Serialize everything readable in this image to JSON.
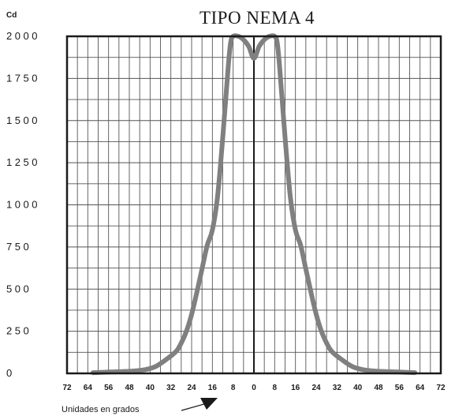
{
  "chart_data": {
    "type": "line",
    "title": "TIPO NEMA 4",
    "ylabel": "Cd",
    "xlabel": "Unidades en grados",
    "xlim": [
      -72,
      72
    ],
    "ylim": [
      0,
      2000
    ],
    "grid": true,
    "x_ticks": [
      -72,
      -64,
      -56,
      -48,
      -40,
      -32,
      -24,
      -16,
      -8,
      0,
      8,
      16,
      24,
      32,
      40,
      48,
      56,
      64,
      72
    ],
    "x_tick_labels": [
      "72",
      "64",
      "56",
      "48",
      "40",
      "32",
      "24",
      "16",
      "8",
      "0",
      "8",
      "16",
      "24",
      "32",
      "40",
      "48",
      "56",
      "64",
      "72"
    ],
    "y_ticks": [
      0,
      250,
      500,
      750,
      1000,
      1250,
      1500,
      1750,
      2000
    ],
    "y_tick_labels": [
      "0",
      "250",
      "500",
      "750",
      "1000",
      "1250",
      "1500",
      "1750",
      "2000"
    ],
    "series": [
      {
        "color": "#808080",
        "x": [
          -62,
          -56,
          -48,
          -42,
          -38,
          -34,
          -30,
          -28,
          -26,
          -24,
          -22,
          -20,
          -18,
          -16,
          -14,
          -12,
          -10,
          -9,
          -8,
          -6,
          -4,
          -2,
          0,
          2,
          4,
          6,
          8,
          9,
          10,
          12,
          14,
          16,
          18,
          20,
          22,
          24,
          26,
          28,
          30,
          34,
          38,
          42,
          48,
          56,
          62
        ],
        "y": [
          4,
          8,
          12,
          22,
          40,
          80,
          130,
          180,
          250,
          350,
          480,
          620,
          760,
          850,
          1050,
          1400,
          1800,
          1960,
          2000,
          2000,
          1980,
          1940,
          1870,
          1940,
          1980,
          2000,
          2000,
          1960,
          1800,
          1400,
          1050,
          850,
          760,
          620,
          480,
          350,
          250,
          180,
          130,
          80,
          40,
          22,
          12,
          8,
          4
        ]
      }
    ],
    "colors": {
      "curve": "#808080",
      "grid": "#555555",
      "frame": "#1a1a1a",
      "axis": "#1a1a1a"
    }
  }
}
